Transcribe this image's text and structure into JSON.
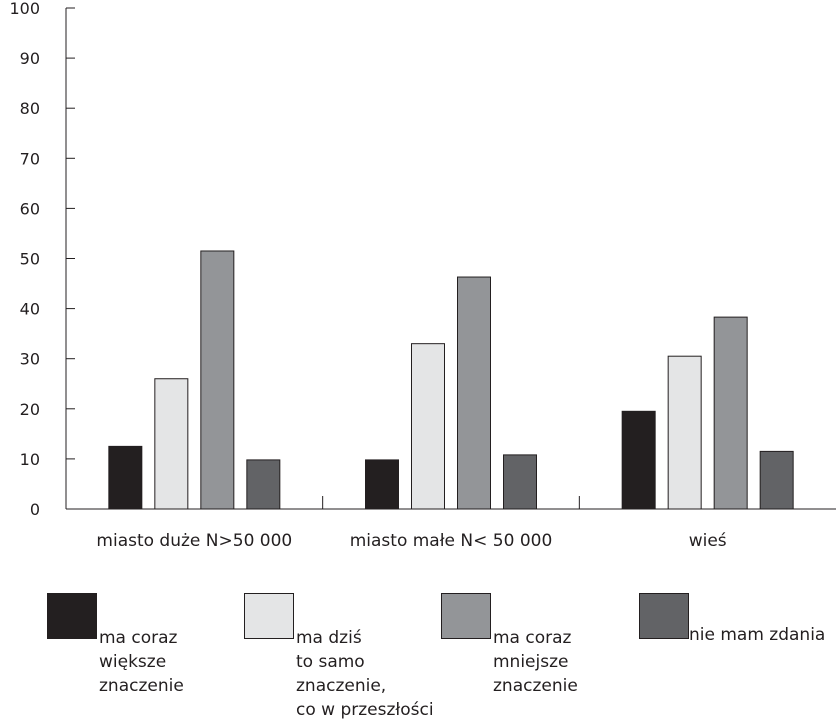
{
  "chart_data": {
    "type": "bar",
    "categories": [
      "miasto duże N>50 000",
      "miasto małe N< 50 000",
      "wieś"
    ],
    "series": [
      {
        "name": "ma coraz\nwiększe\nznaczenie",
        "color": "#231f20",
        "values": [
          12.5,
          9.8,
          19.5
        ]
      },
      {
        "name": "ma dziś\nto samo\nznaczenie,\nco w przeszłości",
        "color": "#e4e5e6",
        "values": [
          26,
          33,
          30.5
        ]
      },
      {
        "name": "ma coraz\nmniejsze\nznaczenie",
        "color": "#939598",
        "values": [
          51.5,
          46.3,
          38.3
        ]
      },
      {
        "name": "nie mam zdania",
        "color": "#626366",
        "values": [
          9.8,
          10.8,
          11.5
        ]
      }
    ],
    "ylim": [
      0,
      100
    ],
    "yticks": [
      "0",
      "10",
      "20",
      "30",
      "40",
      "50",
      "60",
      "70",
      "80",
      "90",
      "100"
    ],
    "xlabel": "",
    "ylabel": "",
    "legend_position": "bottom"
  }
}
